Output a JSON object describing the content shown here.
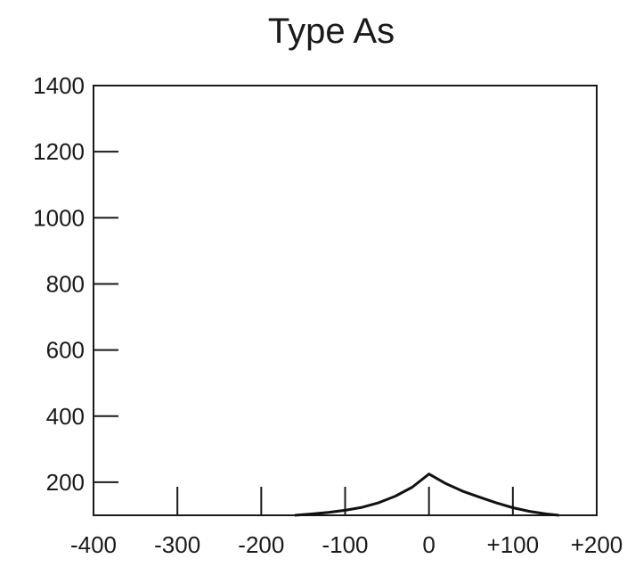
{
  "chart_data": {
    "type": "line",
    "title": "Type As",
    "xlabel": "",
    "ylabel": "",
    "xlim": [
      -400,
      200
    ],
    "ylim": [
      100,
      1400
    ],
    "x_ticks": [
      -400,
      -300,
      -200,
      -100,
      0,
      100,
      200
    ],
    "x_tick_labels": [
      "-400",
      "-300",
      "-200",
      "-100",
      "0",
      "+100",
      "+200"
    ],
    "y_ticks": [
      200,
      400,
      600,
      800,
      1000,
      1200,
      1400
    ],
    "y_tick_labels": [
      "200",
      "400",
      "600",
      "800",
      "1000",
      "1200",
      "1400"
    ],
    "grid": false,
    "x": [
      -160,
      -140,
      -120,
      -100,
      -80,
      -60,
      -40,
      -20,
      0,
      20,
      40,
      60,
      80,
      100,
      120,
      140,
      155
    ],
    "values": [
      100,
      104,
      109,
      115,
      124,
      138,
      158,
      185,
      225,
      196,
      173,
      155,
      138,
      123,
      112,
      104,
      100
    ]
  }
}
